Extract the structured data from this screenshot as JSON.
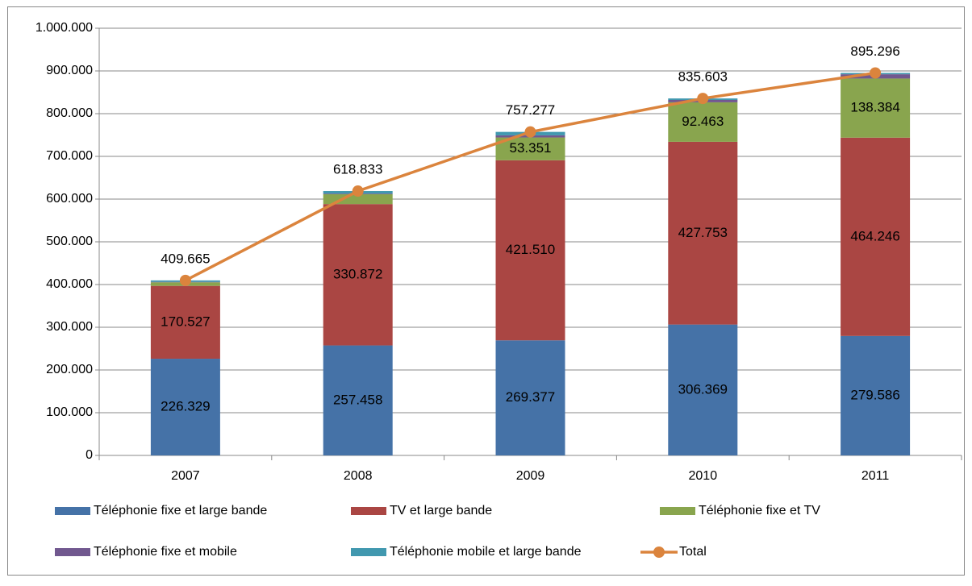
{
  "chart_data": {
    "type": "bar",
    "stacked": true,
    "categories": [
      "2007",
      "2008",
      "2009",
      "2010",
      "2011"
    ],
    "ylim": [
      0,
      1000000
    ],
    "yticks": [
      0,
      {
        "value": 100000,
        "label": "100.000"
      },
      {
        "value": 200000,
        "label": "200.000"
      },
      {
        "value": 300000,
        "label": "300.000"
      },
      {
        "value": 400000,
        "label": "400.000"
      },
      {
        "value": 500000,
        "label": "500.000"
      },
      {
        "value": 600000,
        "label": "600.000"
      },
      {
        "value": 700000,
        "label": "700.000"
      },
      {
        "value": 800000,
        "label": "800.000"
      },
      {
        "value": 900000,
        "label": "900.000"
      },
      {
        "value": 1000000,
        "label": "1.000.000"
      }
    ],
    "grid": true,
    "series": [
      {
        "name": "Téléphonie fixe et large bande",
        "color": "#4572a7",
        "values": [
          226329,
          257458,
          269377,
          306369,
          279586
        ],
        "value_labels": [
          "226.329",
          "257.458",
          "269.377",
          "306.369",
          "279.586"
        ]
      },
      {
        "name": "TV et large bande",
        "color": "#aa4643",
        "values": [
          170527,
          330872,
          421510,
          427753,
          464246
        ],
        "value_labels": [
          "170.527",
          "330.872",
          "421.510",
          "427.753",
          "464.246"
        ]
      },
      {
        "name": "Téléphonie fixe et TV",
        "color": "#89a54e",
        "values": [
          8400,
          23000,
          53351,
          92463,
          138384
        ],
        "value_labels": [
          null,
          null,
          "53.351",
          "92.463",
          "138.384"
        ]
      },
      {
        "name": "Téléphonie fixe et mobile",
        "color": "#71588f",
        "values": [
          1000,
          1500,
          5000,
          5500,
          10000
        ]
      },
      {
        "name": "Téléphonie mobile et large bande",
        "color": "#4198af",
        "values": [
          3409,
          6003,
          8039,
          3518,
          3080
        ]
      },
      {
        "name": "Total",
        "type": "line",
        "color": "#db843d",
        "values": [
          409665,
          618833,
          757277,
          835603,
          895296
        ],
        "value_labels": [
          "409.665",
          "618.833",
          "757.277",
          "835.603",
          "895.296"
        ]
      }
    ],
    "legend": "bottom"
  }
}
